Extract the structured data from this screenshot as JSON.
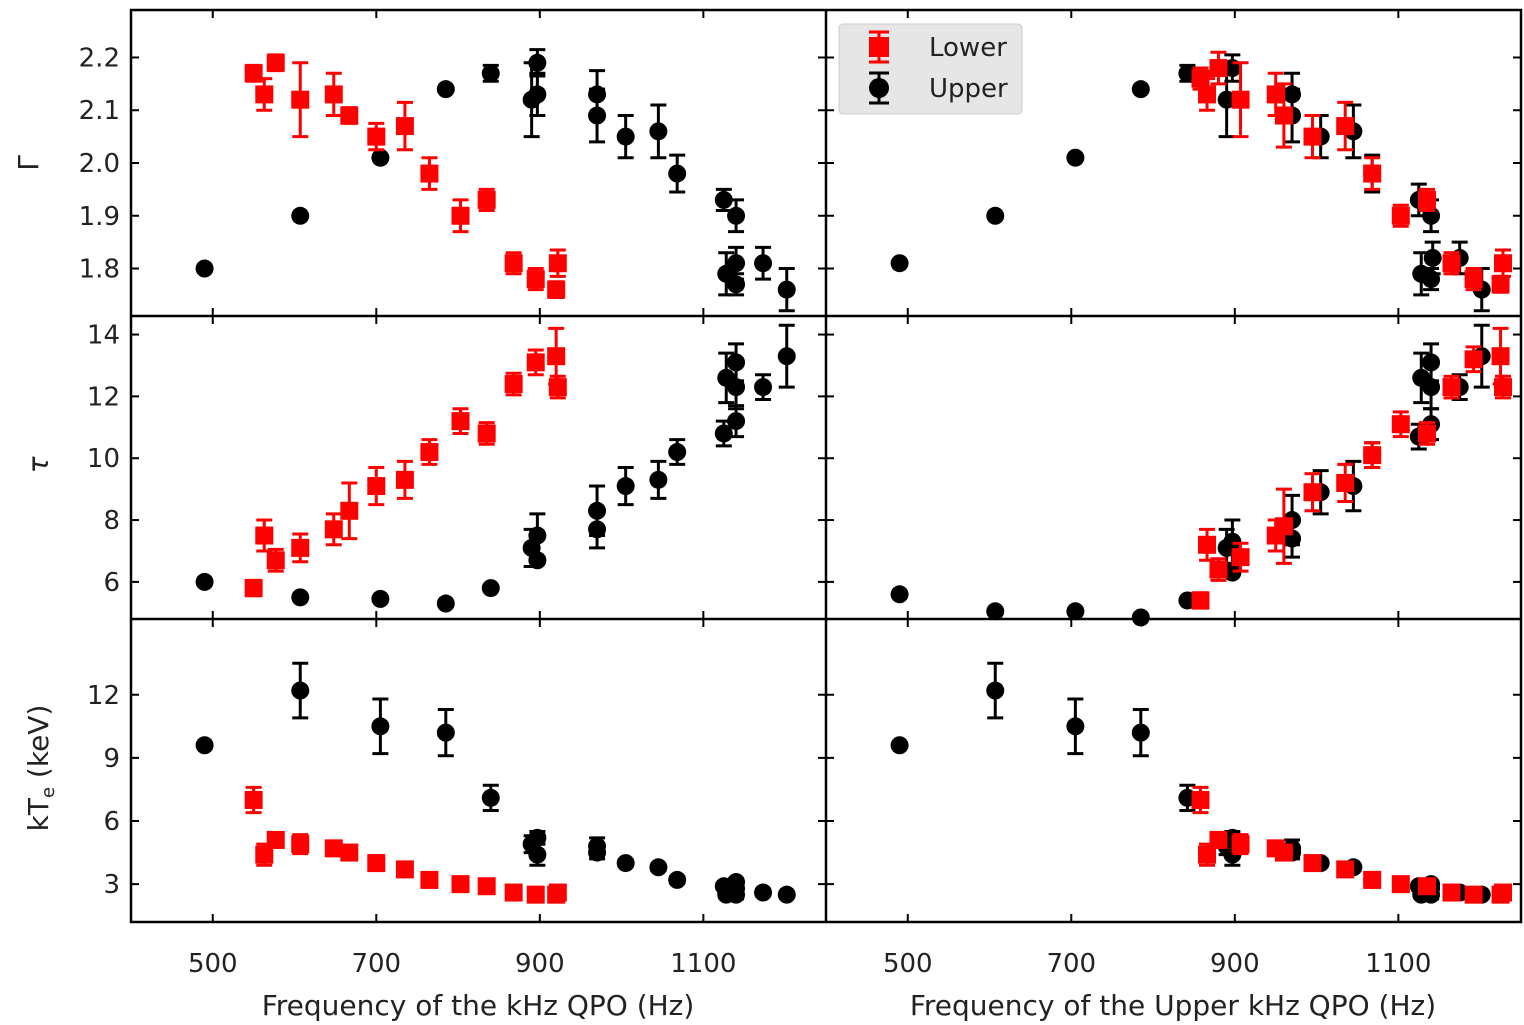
{
  "colors": {
    "lower": "#ff0000",
    "upper": "#000000",
    "legend_bg": "#e6e6e6"
  },
  "legend": {
    "lower_label": "Lower",
    "upper_label": "Upper"
  },
  "axes": {
    "left_xlabel": "Frequency of the kHz QPO (Hz)",
    "right_xlabel": "Frequency of the Upper kHz QPO (Hz)",
    "ylabels": [
      "Γ",
      "τ",
      "kT_e (keV)"
    ],
    "xticks": [
      500,
      700,
      900,
      1100
    ]
  },
  "chart_data": {
    "type": "scatter",
    "xlim": [
      400,
      1250
    ],
    "rows": [
      {
        "name": "gamma",
        "ylim": [
          1.71,
          2.29
        ],
        "yticks": [
          1.8,
          1.9,
          2.0,
          2.1,
          2.2
        ],
        "left": {
          "upper": [
            [
              490,
              1.8,
              0
            ],
            [
              607,
              1.9,
              0
            ],
            [
              705,
              2.01,
              0
            ],
            [
              785,
              2.14,
              0
            ],
            [
              840,
              2.17,
              0.015
            ],
            [
              890,
              2.12,
              0.07
            ],
            [
              897,
              2.19,
              0.025
            ],
            [
              897,
              2.13,
              0.04
            ],
            [
              970,
              2.13,
              0.045
            ],
            [
              970,
              2.09,
              0.05
            ],
            [
              1005,
              2.05,
              0.04
            ],
            [
              1045,
              2.06,
              0.05
            ],
            [
              1068,
              1.98,
              0.035
            ],
            [
              1125,
              1.93,
              0.02
            ],
            [
              1128,
              1.79,
              0.04
            ],
            [
              1140,
              1.9,
              0.03
            ],
            [
              1140,
              1.81,
              0.03
            ],
            [
              1140,
              1.77,
              0.02
            ],
            [
              1173,
              1.81,
              0.03
            ],
            [
              1202,
              1.76,
              0.04
            ]
          ],
          "lower": [
            [
              550,
              2.17,
              0.015
            ],
            [
              563,
              2.13,
              0.03
            ],
            [
              577,
              2.19,
              0.015
            ],
            [
              607,
              2.12,
              0.07
            ],
            [
              648,
              2.13,
              0.04
            ],
            [
              667,
              2.09,
              0.015
            ],
            [
              700,
              2.05,
              0.025
            ],
            [
              735,
              2.07,
              0.045
            ],
            [
              765,
              1.98,
              0.03
            ],
            [
              803,
              1.9,
              0.03
            ],
            [
              835,
              1.93,
              0.02
            ],
            [
              868,
              1.81,
              0.02
            ],
            [
              895,
              1.78,
              0.02
            ],
            [
              920,
              1.76,
              0.015
            ],
            [
              922,
              1.81,
              0.025
            ]
          ]
        },
        "right": {
          "upper": [
            [
              490,
              1.81,
              0
            ],
            [
              607,
              1.9,
              0
            ],
            [
              705,
              2.01,
              0
            ],
            [
              785,
              2.14,
              0
            ],
            [
              842,
              2.17,
              0.015
            ],
            [
              890,
              2.12,
              0.07
            ],
            [
              897,
              2.18,
              0.025
            ],
            [
              970,
              2.13,
              0.04
            ],
            [
              970,
              2.09,
              0.05
            ],
            [
              1005,
              2.05,
              0.04
            ],
            [
              1045,
              2.06,
              0.05
            ],
            [
              1068,
              1.98,
              0.035
            ],
            [
              1125,
              1.93,
              0.03
            ],
            [
              1128,
              1.79,
              0.04
            ],
            [
              1140,
              1.9,
              0.03
            ],
            [
              1142,
              1.82,
              0.03
            ],
            [
              1140,
              1.78,
              0.02
            ],
            [
              1175,
              1.82,
              0.03
            ],
            [
              1202,
              1.76,
              0.04
            ]
          ],
          "lower": [
            [
              858,
              2.16,
              0.02
            ],
            [
              866,
              2.13,
              0.03
            ],
            [
              880,
              2.18,
              0.03
            ],
            [
              907,
              2.12,
              0.07
            ],
            [
              950,
              2.13,
              0.04
            ],
            [
              960,
              2.09,
              0.06
            ],
            [
              995,
              2.05,
              0.04
            ],
            [
              1035,
              2.07,
              0.045
            ],
            [
              1068,
              1.98,
              0.03
            ],
            [
              1103,
              1.9,
              0.02
            ],
            [
              1135,
              1.93,
              0.02
            ],
            [
              1165,
              1.81,
              0.02
            ],
            [
              1192,
              1.78,
              0.02
            ],
            [
              1225,
              1.77,
              0.015
            ],
            [
              1228,
              1.81,
              0.025
            ]
          ]
        }
      },
      {
        "name": "tau",
        "ylim": [
          4.8,
          14.6
        ],
        "yticks": [
          6,
          8,
          10,
          12,
          14
        ],
        "left": {
          "upper": [
            [
              490,
              6.0,
              0
            ],
            [
              607,
              5.5,
              0
            ],
            [
              705,
              5.45,
              0
            ],
            [
              785,
              5.3,
              0
            ],
            [
              840,
              5.8,
              0
            ],
            [
              890,
              7.1,
              0.6
            ],
            [
              897,
              6.7,
              0
            ],
            [
              897,
              7.5,
              0.7
            ],
            [
              970,
              7.7,
              0.6
            ],
            [
              970,
              8.3,
              0.8
            ],
            [
              1005,
              9.1,
              0.6
            ],
            [
              1045,
              9.3,
              0.6
            ],
            [
              1068,
              10.2,
              0.4
            ],
            [
              1125,
              10.8,
              0.4
            ],
            [
              1128,
              12.6,
              0.8
            ],
            [
              1140,
              13.1,
              0.6
            ],
            [
              1140,
              12.3,
              0.7
            ],
            [
              1140,
              11.2,
              0.5
            ],
            [
              1173,
              12.3,
              0.4
            ],
            [
              1202,
              13.3,
              1.0
            ]
          ],
          "lower": [
            [
              550,
              5.8,
              0.25
            ],
            [
              563,
              7.5,
              0.5
            ],
            [
              577,
              6.7,
              0.35
            ],
            [
              607,
              7.1,
              0.45
            ],
            [
              648,
              7.7,
              0.5
            ],
            [
              667,
              8.3,
              0.9
            ],
            [
              700,
              9.1,
              0.6
            ],
            [
              735,
              9.3,
              0.6
            ],
            [
              765,
              10.2,
              0.4
            ],
            [
              803,
              11.2,
              0.4
            ],
            [
              835,
              10.8,
              0.35
            ],
            [
              868,
              12.4,
              0.35
            ],
            [
              895,
              13.1,
              0.4
            ],
            [
              920,
              13.3,
              0.9
            ],
            [
              922,
              12.3,
              0.35
            ]
          ]
        },
        "right": {
          "upper": [
            [
              490,
              5.6,
              0
            ],
            [
              607,
              5.05,
              0
            ],
            [
              705,
              5.05,
              0
            ],
            [
              785,
              4.85,
              0
            ],
            [
              842,
              5.4,
              0
            ],
            [
              890,
              7.1,
              0.6
            ],
            [
              897,
              6.3,
              0
            ],
            [
              897,
              7.3,
              0.7
            ],
            [
              970,
              7.4,
              0.6
            ],
            [
              970,
              8.0,
              0.8
            ],
            [
              1005,
              8.9,
              0.7
            ],
            [
              1045,
              9.1,
              0.8
            ],
            [
              1068,
              10.1,
              0.4
            ],
            [
              1125,
              10.7,
              0.4
            ],
            [
              1128,
              12.6,
              0.8
            ],
            [
              1140,
              13.1,
              0.6
            ],
            [
              1140,
              12.3,
              0.7
            ],
            [
              1140,
              11.1,
              0.5
            ],
            [
              1175,
              12.3,
              0.4
            ],
            [
              1202,
              13.3,
              1.0
            ]
          ],
          "lower": [
            [
              858,
              5.4,
              0.25
            ],
            [
              866,
              7.2,
              0.5
            ],
            [
              880,
              6.4,
              0.35
            ],
            [
              907,
              6.8,
              0.45
            ],
            [
              950,
              7.5,
              0.5
            ],
            [
              960,
              7.8,
              1.2
            ],
            [
              995,
              8.9,
              0.6
            ],
            [
              1035,
              9.2,
              0.6
            ],
            [
              1068,
              10.1,
              0.4
            ],
            [
              1103,
              11.1,
              0.4
            ],
            [
              1135,
              10.8,
              0.35
            ],
            [
              1165,
              12.3,
              0.35
            ],
            [
              1192,
              13.2,
              0.4
            ],
            [
              1225,
              13.3,
              0.9
            ],
            [
              1228,
              12.3,
              0.35
            ]
          ]
        }
      },
      {
        "name": "kte",
        "ylim": [
          1.2,
          15.6
        ],
        "yticks": [
          3,
          6,
          9,
          12
        ],
        "left": {
          "upper": [
            [
              490,
              9.6,
              0
            ],
            [
              607,
              12.2,
              1.3
            ],
            [
              705,
              10.5,
              1.3
            ],
            [
              785,
              10.2,
              1.1
            ],
            [
              840,
              7.1,
              0.6
            ],
            [
              890,
              4.9,
              0.4
            ],
            [
              897,
              5.2,
              0.3
            ],
            [
              897,
              4.4,
              0.5
            ],
            [
              970,
              4.8,
              0.4
            ],
            [
              970,
              4.5,
              0.3
            ],
            [
              1005,
              4.0,
              0.15
            ],
            [
              1045,
              3.8,
              0.15
            ],
            [
              1068,
              3.2,
              0.15
            ],
            [
              1125,
              2.9,
              0.15
            ],
            [
              1128,
              2.5,
              0.15
            ],
            [
              1140,
              2.5,
              0.2
            ],
            [
              1140,
              2.8,
              0.3
            ],
            [
              1140,
              3.1,
              0.15
            ],
            [
              1173,
              2.6,
              0.15
            ],
            [
              1202,
              2.5,
              0
            ]
          ],
          "lower": [
            [
              550,
              7.0,
              0.6
            ],
            [
              563,
              4.4,
              0.5
            ],
            [
              577,
              5.1,
              0.35
            ],
            [
              607,
              4.9,
              0.45
            ],
            [
              648,
              4.7,
              0.2
            ],
            [
              667,
              4.5,
              0.3
            ],
            [
              700,
              4.0,
              0.2
            ],
            [
              735,
              3.7,
              0.2
            ],
            [
              765,
              3.2,
              0.2
            ],
            [
              803,
              3.0,
              0.15
            ],
            [
              835,
              2.9,
              0.15
            ],
            [
              868,
              2.6,
              0.15
            ],
            [
              895,
              2.5,
              0.1
            ],
            [
              920,
              2.5,
              0.1
            ],
            [
              922,
              2.6,
              0.1
            ]
          ]
        },
        "right": {
          "upper": [
            [
              490,
              9.6,
              0
            ],
            [
              607,
              12.2,
              1.3
            ],
            [
              705,
              10.5,
              1.3
            ],
            [
              785,
              10.2,
              1.1
            ],
            [
              842,
              7.1,
              0.6
            ],
            [
              890,
              4.8,
              0.4
            ],
            [
              897,
              5.2,
              0.3
            ],
            [
              897,
              4.4,
              0.5
            ],
            [
              970,
              4.7,
              0.4
            ],
            [
              970,
              4.5,
              0.3
            ],
            [
              1005,
              4.0,
              0.15
            ],
            [
              1045,
              3.8,
              0.15
            ],
            [
              1068,
              3.2,
              0.15
            ],
            [
              1125,
              2.9,
              0.15
            ],
            [
              1128,
              2.5,
              0.15
            ],
            [
              1140,
              2.5,
              0.2
            ],
            [
              1140,
              2.8,
              0.3
            ],
            [
              1140,
              3.0,
              0.15
            ],
            [
              1175,
              2.6,
              0.15
            ],
            [
              1202,
              2.5,
              0
            ]
          ],
          "lower": [
            [
              858,
              7.0,
              0.6
            ],
            [
              866,
              4.4,
              0.5
            ],
            [
              880,
              5.1,
              0.35
            ],
            [
              907,
              4.9,
              0.45
            ],
            [
              950,
              4.7,
              0.2
            ],
            [
              960,
              4.5,
              0.3
            ],
            [
              995,
              4.0,
              0.2
            ],
            [
              1035,
              3.7,
              0.2
            ],
            [
              1068,
              3.2,
              0.2
            ],
            [
              1103,
              3.0,
              0.15
            ],
            [
              1135,
              2.9,
              0.15
            ],
            [
              1165,
              2.6,
              0.15
            ],
            [
              1192,
              2.5,
              0.1
            ],
            [
              1225,
              2.5,
              0.1
            ],
            [
              1228,
              2.6,
              0.1
            ]
          ]
        }
      }
    ]
  }
}
